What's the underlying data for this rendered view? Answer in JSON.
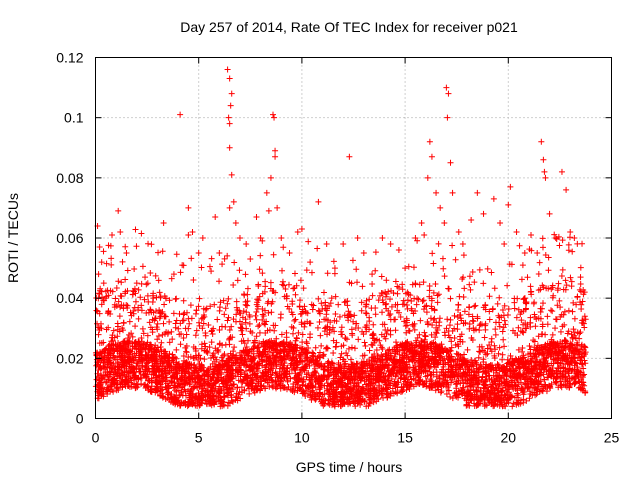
{
  "chart_data": {
    "type": "scatter",
    "title": "Day 257 of 2014, Rate Of TEC Index for receiver p021",
    "xlabel": "GPS time / hours",
    "ylabel": "ROTI / TECUs",
    "xlim": [
      0,
      25
    ],
    "ylim": [
      0,
      0.12
    ],
    "xticks": [
      0,
      5,
      10,
      15,
      20,
      25
    ],
    "xtick_labels": [
      "0",
      "5",
      "10",
      "15",
      "20",
      "25"
    ],
    "yticks": [
      0,
      0.02,
      0.04,
      0.06,
      0.08,
      0.1,
      0.12
    ],
    "ytick_labels": [
      "0",
      "0.02",
      "0.04",
      "0.06",
      "0.08",
      "0.1",
      "0.12"
    ],
    "grid": true,
    "marker": "+",
    "color": "#ff0000",
    "series": [
      {
        "name": "ROTI",
        "points": [
          [
            0.1,
            0.064
          ],
          [
            0.2,
            0.057
          ],
          [
            0.15,
            0.048
          ],
          [
            0.3,
            0.052
          ],
          [
            0.4,
            0.045
          ],
          [
            0.5,
            0.04
          ],
          [
            0.6,
            0.035
          ],
          [
            0.8,
            0.061
          ],
          [
            1.1,
            0.069
          ],
          [
            1.2,
            0.062
          ],
          [
            1.5,
            0.055
          ],
          [
            2.0,
            0.045
          ],
          [
            2.4,
            0.047
          ],
          [
            2.8,
            0.04
          ],
          [
            3.3,
            0.065
          ],
          [
            3.8,
            0.048
          ],
          [
            4.1,
            0.101
          ],
          [
            4.2,
            0.051
          ],
          [
            4.5,
            0.07
          ],
          [
            4.7,
            0.062
          ],
          [
            4.5,
            0.061
          ],
          [
            5.0,
            0.055
          ],
          [
            5.2,
            0.06
          ],
          [
            5.6,
            0.049
          ],
          [
            5.8,
            0.067
          ],
          [
            6.0,
            0.055
          ],
          [
            6.4,
            0.116
          ],
          [
            6.5,
            0.113
          ],
          [
            6.6,
            0.108
          ],
          [
            6.55,
            0.104
          ],
          [
            6.45,
            0.1
          ],
          [
            6.5,
            0.098
          ],
          [
            6.5,
            0.09
          ],
          [
            6.6,
            0.081
          ],
          [
            6.7,
            0.072
          ],
          [
            6.5,
            0.07
          ],
          [
            6.8,
            0.065
          ],
          [
            7.0,
            0.06
          ],
          [
            7.3,
            0.058
          ],
          [
            7.5,
            0.053
          ],
          [
            7.8,
            0.067
          ],
          [
            8.0,
            0.06
          ],
          [
            8.3,
            0.075
          ],
          [
            8.4,
            0.069
          ],
          [
            8.6,
            0.101
          ],
          [
            8.65,
            0.1
          ],
          [
            8.7,
            0.089
          ],
          [
            8.7,
            0.087
          ],
          [
            8.5,
            0.08
          ],
          [
            8.8,
            0.07
          ],
          [
            9.0,
            0.06
          ],
          [
            9.4,
            0.055
          ],
          [
            9.8,
            0.062
          ],
          [
            10.0,
            0.063
          ],
          [
            10.4,
            0.052
          ],
          [
            10.8,
            0.072
          ],
          [
            11.2,
            0.058
          ],
          [
            11.6,
            0.05
          ],
          [
            12.0,
            0.058
          ],
          [
            12.3,
            0.087
          ],
          [
            12.7,
            0.06
          ],
          [
            13.0,
            0.055
          ],
          [
            13.4,
            0.048
          ],
          [
            13.9,
            0.06
          ],
          [
            14.3,
            0.058
          ],
          [
            14.7,
            0.056
          ],
          [
            15.0,
            0.05
          ],
          [
            15.5,
            0.06
          ],
          [
            15.8,
            0.065
          ],
          [
            16.1,
            0.08
          ],
          [
            16.2,
            0.092
          ],
          [
            16.3,
            0.087
          ],
          [
            16.5,
            0.075
          ],
          [
            16.7,
            0.07
          ],
          [
            16.9,
            0.065
          ],
          [
            17.0,
            0.11
          ],
          [
            17.1,
            0.108
          ],
          [
            17.05,
            0.1
          ],
          [
            17.2,
            0.085
          ],
          [
            17.3,
            0.075
          ],
          [
            17.6,
            0.062
          ],
          [
            17.8,
            0.058
          ],
          [
            18.2,
            0.066
          ],
          [
            18.5,
            0.075
          ],
          [
            18.8,
            0.068
          ],
          [
            19.3,
            0.073
          ],
          [
            19.6,
            0.065
          ],
          [
            19.8,
            0.058
          ],
          [
            20.0,
            0.071
          ],
          [
            20.1,
            0.077
          ],
          [
            20.4,
            0.062
          ],
          [
            20.8,
            0.055
          ],
          [
            21.1,
            0.061
          ],
          [
            21.4,
            0.055
          ],
          [
            21.6,
            0.092
          ],
          [
            21.7,
            0.086
          ],
          [
            21.8,
            0.08
          ],
          [
            21.75,
            0.082
          ],
          [
            22.0,
            0.068
          ],
          [
            22.3,
            0.06
          ],
          [
            22.6,
            0.082
          ],
          [
            22.8,
            0.076
          ],
          [
            23.0,
            0.062
          ],
          [
            23.2,
            0.06
          ],
          [
            23.5,
            0.047
          ],
          [
            23.7,
            0.042
          ]
        ]
      }
    ]
  }
}
